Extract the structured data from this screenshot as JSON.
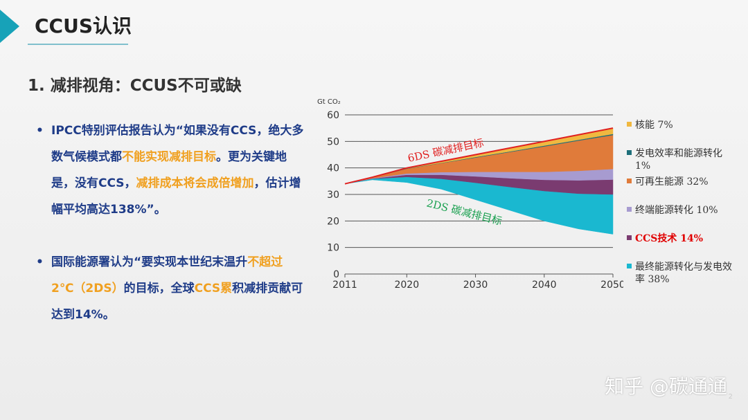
{
  "header": {
    "title": "CCUS认识",
    "subtitle": "1. 减排视角：CCUS不可或缺"
  },
  "bullets": [
    [
      {
        "text": "IPCC特别评估报告认为“如果没有CCS，绝大多数气候模式都",
        "highlight": false
      },
      {
        "text": "不能实现减排目标",
        "highlight": true
      },
      {
        "text": "。更为关键地是，没有CCS，",
        "highlight": false
      },
      {
        "text": "减排成本将会成倍增加",
        "highlight": true
      },
      {
        "text": "，估计增幅平均高达138%”。",
        "highlight": false
      }
    ],
    [
      {
        "text": "国际能源署认为“要实现本世纪末温升",
        "highlight": false
      },
      {
        "text": "不超过2℃（2DS）",
        "highlight": true
      },
      {
        "text": "的目标，全球",
        "highlight": false
      },
      {
        "text": "CCS累",
        "highlight": true
      },
      {
        "text": "积减排贡献可达到14%。",
        "highlight": false
      }
    ]
  ],
  "watermark": "知乎 @碳通通",
  "page_number": "2",
  "chart_data": {
    "type": "stacked-area",
    "y_label": "Gt CO₂",
    "x": [
      2011,
      2015,
      2020,
      2025,
      2030,
      2035,
      2040,
      2045,
      2050
    ],
    "xlim": [
      2011,
      2050
    ],
    "xticks": [
      2011,
      2020,
      2030,
      2040,
      2050
    ],
    "ylim": [
      0,
      60
    ],
    "yticks": [
      0,
      10,
      20,
      30,
      40,
      50,
      60
    ],
    "grid": true,
    "pathways": [
      {
        "name": "6DS 碳减排目标",
        "color": "#e02020",
        "values": [
          34,
          36.5,
          40,
          42.5,
          45,
          47.5,
          50,
          52.5,
          55
        ]
      },
      {
        "name": "2DS 碳减排目标",
        "color": "#1aa050",
        "values": [
          34,
          35.5,
          34.5,
          32,
          28,
          24,
          20,
          17,
          15
        ]
      }
    ],
    "series": [
      {
        "name": "最终能源转化与发电效率 38%",
        "color": "#1ab8d0",
        "values": [
          0,
          0.4,
          2.1,
          3.9,
          6.4,
          8.8,
          11.3,
          13.3,
          15
        ]
      },
      {
        "name": "CCS技术 14%",
        "color": "#7a3b70",
        "label_color": "#e00000",
        "values": [
          0,
          0.1,
          0.8,
          1.5,
          2.4,
          3.3,
          4.2,
          5.0,
          5.6
        ]
      },
      {
        "name": "终端能源转化 10%",
        "color": "#a79bd0",
        "values": [
          0,
          0.1,
          0.5,
          1.0,
          1.7,
          2.4,
          3.0,
          3.6,
          4
        ]
      },
      {
        "name": "可再生能源 32%",
        "color": "#e07b3a",
        "values": [
          0,
          0.3,
          1.8,
          3.4,
          5.4,
          7.5,
          9.6,
          11.4,
          12.8
        ]
      },
      {
        "name": "发电效率和能源转化 1%",
        "color": "#1e6f7a",
        "values": [
          0,
          0,
          0.1,
          0.1,
          0.2,
          0.2,
          0.3,
          0.3,
          0.4
        ]
      },
      {
        "name": "核能 7%",
        "color": "#f0b840",
        "values": [
          0,
          0.1,
          0.3,
          0.6,
          0.9,
          1.3,
          1.6,
          1.9,
          2.2
        ]
      }
    ]
  }
}
